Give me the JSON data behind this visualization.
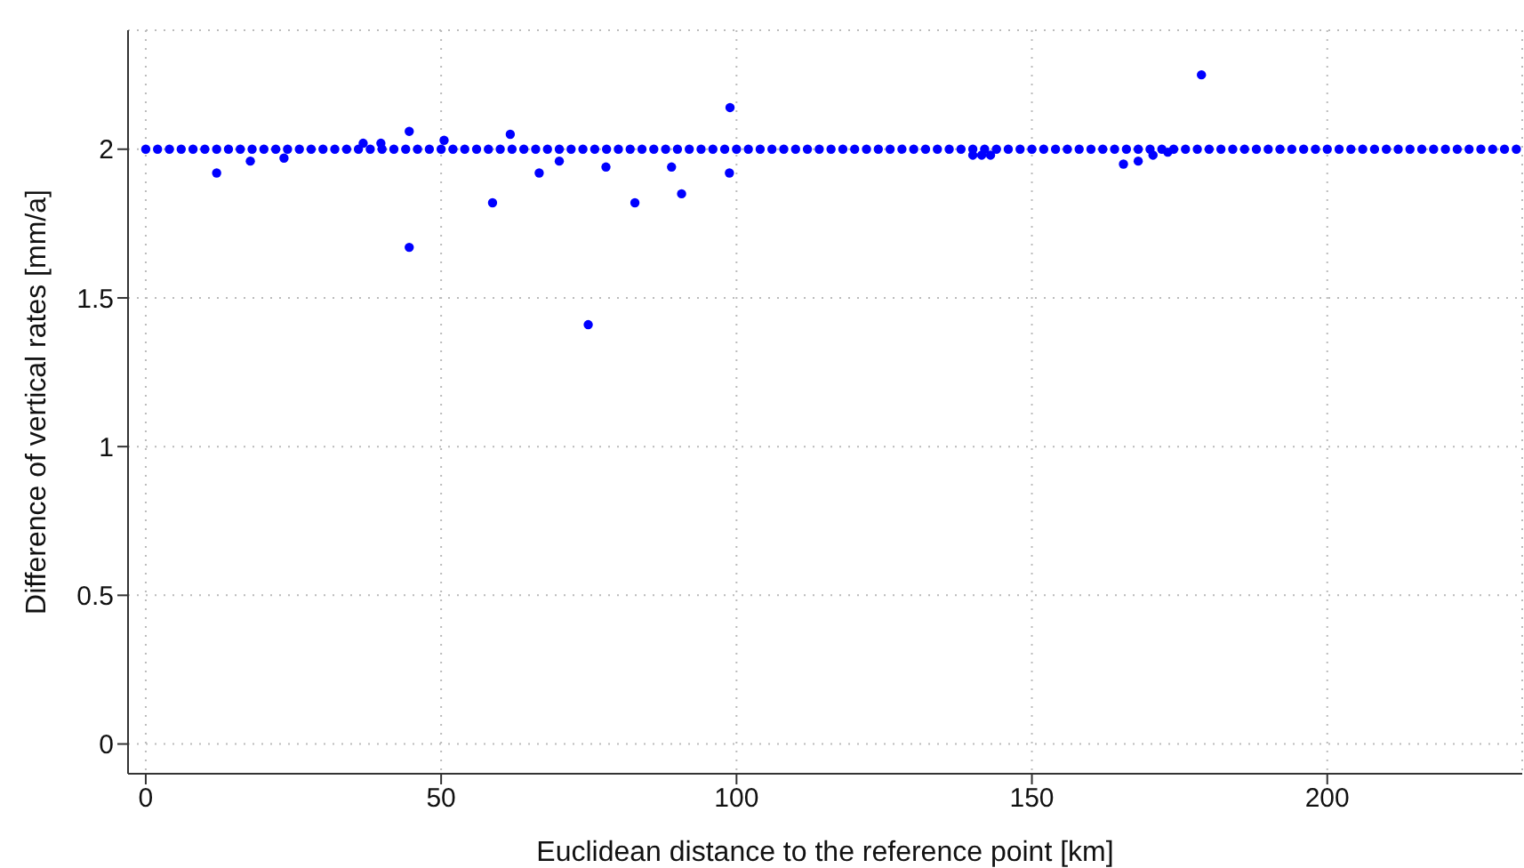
{
  "chart_data": {
    "type": "scatter",
    "xlabel": "Euclidean distance to the reference point [km]",
    "ylabel": "Difference of vertical rates [mm/a]",
    "xlim": [
      -3,
      233
    ],
    "ylim": [
      -0.1,
      2.4
    ],
    "xticks": [
      0,
      50,
      100,
      150,
      200
    ],
    "yticks": [
      0,
      0.5,
      1,
      1.5,
      2
    ],
    "grid": true,
    "marker": "circle",
    "series": [
      {
        "color": "#0000ff",
        "x": [
          0,
          2,
          4,
          6,
          8,
          10,
          12,
          14,
          16,
          18,
          20,
          22,
          24,
          26,
          28,
          30,
          32,
          34,
          36,
          38,
          40,
          42,
          44,
          46,
          48,
          50,
          52,
          54,
          56,
          58,
          60,
          62,
          64,
          66,
          68,
          70,
          72,
          74,
          76,
          78,
          80,
          82,
          84,
          86,
          88,
          90,
          92,
          94,
          96,
          98,
          100,
          102,
          104,
          106,
          108,
          110,
          112,
          114,
          116,
          118,
          120,
          122,
          124,
          126,
          128,
          130,
          132,
          134,
          136,
          138,
          140,
          142,
          144,
          146,
          148,
          150,
          152,
          154,
          156,
          158,
          160,
          162,
          164,
          166,
          168,
          170,
          172,
          174,
          176,
          178,
          180,
          182,
          184,
          186,
          188,
          190,
          192,
          194,
          196,
          198,
          200,
          202,
          204,
          206,
          208,
          210,
          212,
          214,
          216,
          218,
          220,
          222,
          224,
          226,
          228,
          230,
          232,
          12.0,
          17.7,
          44.6,
          44.6,
          58.7,
          61.7,
          66.6,
          74.9,
          77.9,
          82.8,
          89.0,
          90.7,
          98.9,
          98.8,
          36.8,
          39.8,
          50.5,
          23.4,
          70,
          178.7,
          140,
          141.5,
          143,
          165.5,
          168,
          170.5,
          173
        ],
        "values": [
          2,
          2,
          2,
          2,
          2,
          2,
          2,
          2,
          2,
          2,
          2,
          2,
          2,
          2,
          2,
          2,
          2,
          2,
          2,
          2,
          2,
          2,
          2,
          2,
          2,
          2,
          2,
          2,
          2,
          2,
          2,
          2,
          2,
          2,
          2,
          2,
          2,
          2,
          2,
          2,
          2,
          2,
          2,
          2,
          2,
          2,
          2,
          2,
          2,
          2,
          2,
          2,
          2,
          2,
          2,
          2,
          2,
          2,
          2,
          2,
          2,
          2,
          2,
          2,
          2,
          2,
          2,
          2,
          2,
          2,
          2,
          2,
          2,
          2,
          2,
          2,
          2,
          2,
          2,
          2,
          2,
          2,
          2,
          2,
          2,
          2,
          2,
          2,
          2,
          2,
          2,
          2,
          2,
          2,
          2,
          2,
          2,
          2,
          2,
          2,
          2,
          2,
          2,
          2,
          2,
          2,
          2,
          2,
          2,
          2,
          2,
          2,
          2,
          2,
          2,
          2,
          2,
          1.92,
          1.96,
          1.67,
          2.06,
          1.82,
          2.05,
          1.92,
          1.41,
          1.94,
          1.82,
          1.94,
          1.85,
          2.14,
          1.92,
          2.02,
          2.02,
          2.03,
          1.97,
          1.96,
          2.25,
          1.98,
          1.98,
          1.98,
          1.95,
          1.96,
          1.98,
          1.99
        ]
      }
    ]
  }
}
